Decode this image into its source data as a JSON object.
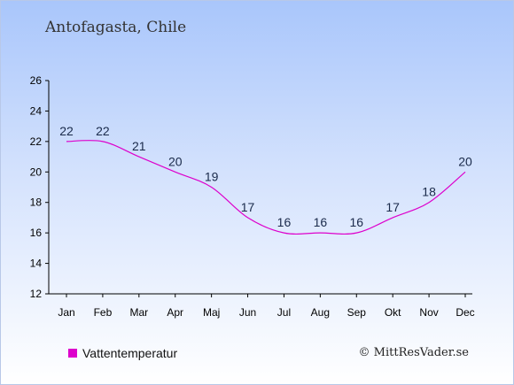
{
  "header": {
    "title": "Antofagasta, Chile"
  },
  "legend": {
    "label": "Vattentemperatur"
  },
  "credit": "© MittResVader.se",
  "colors": {
    "series": "#dd00cc",
    "axis": "#000000",
    "label": "#1a2a4a"
  },
  "chart_data": {
    "type": "line",
    "categories": [
      "Jan",
      "Feb",
      "Mar",
      "Apr",
      "Maj",
      "Jun",
      "Jul",
      "Aug",
      "Sep",
      "Okt",
      "Nov",
      "Dec"
    ],
    "series": [
      {
        "name": "Vattentemperatur",
        "values": [
          22,
          22,
          21,
          20,
          19,
          17,
          16,
          16,
          16,
          17,
          18,
          20
        ]
      }
    ],
    "y_ticks": [
      12,
      14,
      16,
      18,
      20,
      22,
      24,
      26
    ],
    "ylim": [
      12,
      26
    ],
    "grid": false,
    "legend_position": "bottom-left"
  }
}
